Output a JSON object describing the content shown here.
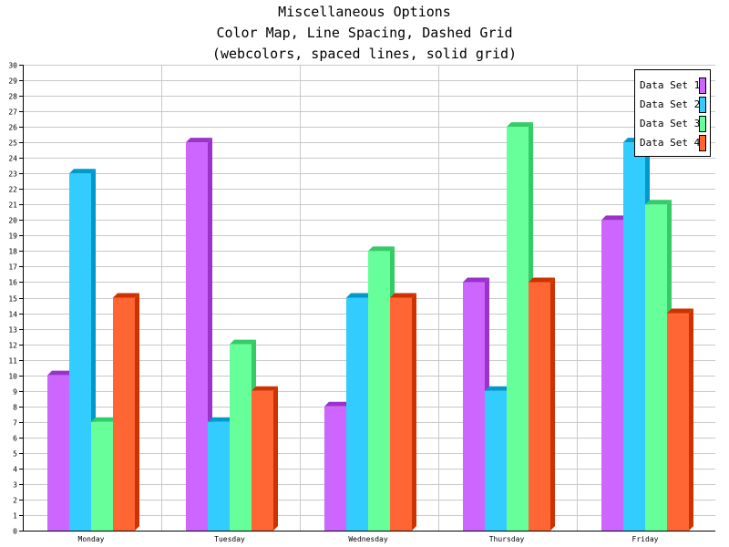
{
  "title_lines": [
    "Miscellaneous Options",
    "Color Map, Line Spacing, Dashed Grid",
    "(webcolors, spaced lines, solid grid)"
  ],
  "chart_data": {
    "type": "bar",
    "title": "Miscellaneous Options",
    "subtitle": "Color Map, Line Spacing, Dashed Grid (webcolors, spaced lines, solid grid)",
    "categories": [
      "Monday",
      "Tuesday",
      "Wednesday",
      "Thursday",
      "Friday"
    ],
    "series": [
      {
        "name": "Data Set 1",
        "values": [
          10,
          25,
          8,
          16,
          20
        ],
        "color": "#cc66ff",
        "side_color": "#9933cc"
      },
      {
        "name": "Data Set 2",
        "values": [
          23,
          7,
          15,
          9,
          25
        ],
        "color": "#33ccff",
        "side_color": "#0099cc"
      },
      {
        "name": "Data Set 3",
        "values": [
          7,
          12,
          18,
          26,
          21
        ],
        "color": "#66ff99",
        "side_color": "#33cc66"
      },
      {
        "name": "Data Set 4",
        "values": [
          15,
          9,
          15,
          16,
          14
        ],
        "color": "#ff6633",
        "side_color": "#cc3300"
      }
    ],
    "ylim": [
      0,
      30
    ],
    "ytick_step": 1,
    "grid": true,
    "legend_position": "top-right",
    "xlabel": "",
    "ylabel": ""
  }
}
